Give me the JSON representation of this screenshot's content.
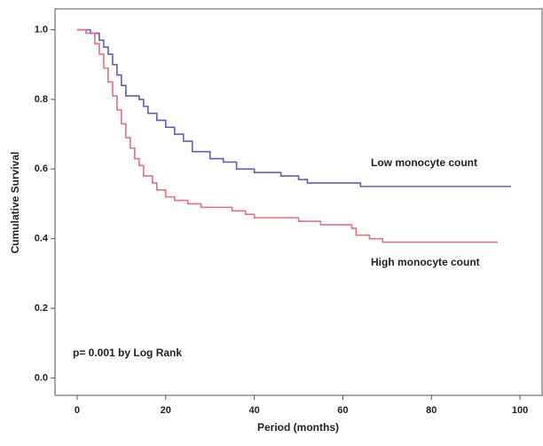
{
  "chart_data": {
    "type": "step",
    "xlabel": "Period (months)",
    "ylabel": "Cumulative Survival",
    "xlim": [
      -5,
      105
    ],
    "ylim": [
      -0.05,
      1.06
    ],
    "xticks": [
      0,
      20,
      40,
      60,
      80,
      100
    ],
    "yticks": [
      {
        "value": 0,
        "label": "0.0"
      },
      {
        "value": 0.2,
        "label": "0.2"
      },
      {
        "value": 0.4,
        "label": "0.4"
      },
      {
        "value": 0.6,
        "label": "0.6"
      },
      {
        "value": 0.8,
        "label": "0.8"
      },
      {
        "value": 1,
        "label": "1.0"
      }
    ],
    "series": [
      {
        "name": "Low monocyte count",
        "color": "#5a5fc0",
        "x": [
          0,
          3,
          5,
          6,
          7,
          8,
          9,
          10,
          11,
          14,
          15,
          16,
          18,
          20,
          22,
          24,
          26,
          30,
          33,
          36,
          40,
          46,
          50,
          52,
          64,
          98
        ],
        "values": [
          1.0,
          0.99,
          0.97,
          0.95,
          0.93,
          0.9,
          0.87,
          0.84,
          0.81,
          0.8,
          0.78,
          0.76,
          0.74,
          0.72,
          0.7,
          0.68,
          0.65,
          0.63,
          0.62,
          0.6,
          0.59,
          0.58,
          0.57,
          0.56,
          0.55,
          0.55
        ]
      },
      {
        "name": "High monocyte count",
        "color": "#e8707c",
        "x": [
          0,
          2,
          4,
          5,
          6,
          7,
          8,
          9,
          10,
          11,
          12,
          13,
          14,
          15,
          17,
          18,
          20,
          22,
          25,
          28,
          35,
          38,
          40,
          50,
          55,
          62,
          63,
          66,
          69,
          95
        ],
        "values": [
          1.0,
          0.99,
          0.96,
          0.93,
          0.89,
          0.85,
          0.81,
          0.77,
          0.73,
          0.69,
          0.66,
          0.63,
          0.61,
          0.58,
          0.56,
          0.54,
          0.52,
          0.51,
          0.5,
          0.49,
          0.48,
          0.47,
          0.46,
          0.45,
          0.44,
          0.43,
          0.41,
          0.4,
          0.39,
          0.39
        ]
      }
    ],
    "annotations": [
      "p= 0.001 by Log Rank"
    ]
  }
}
